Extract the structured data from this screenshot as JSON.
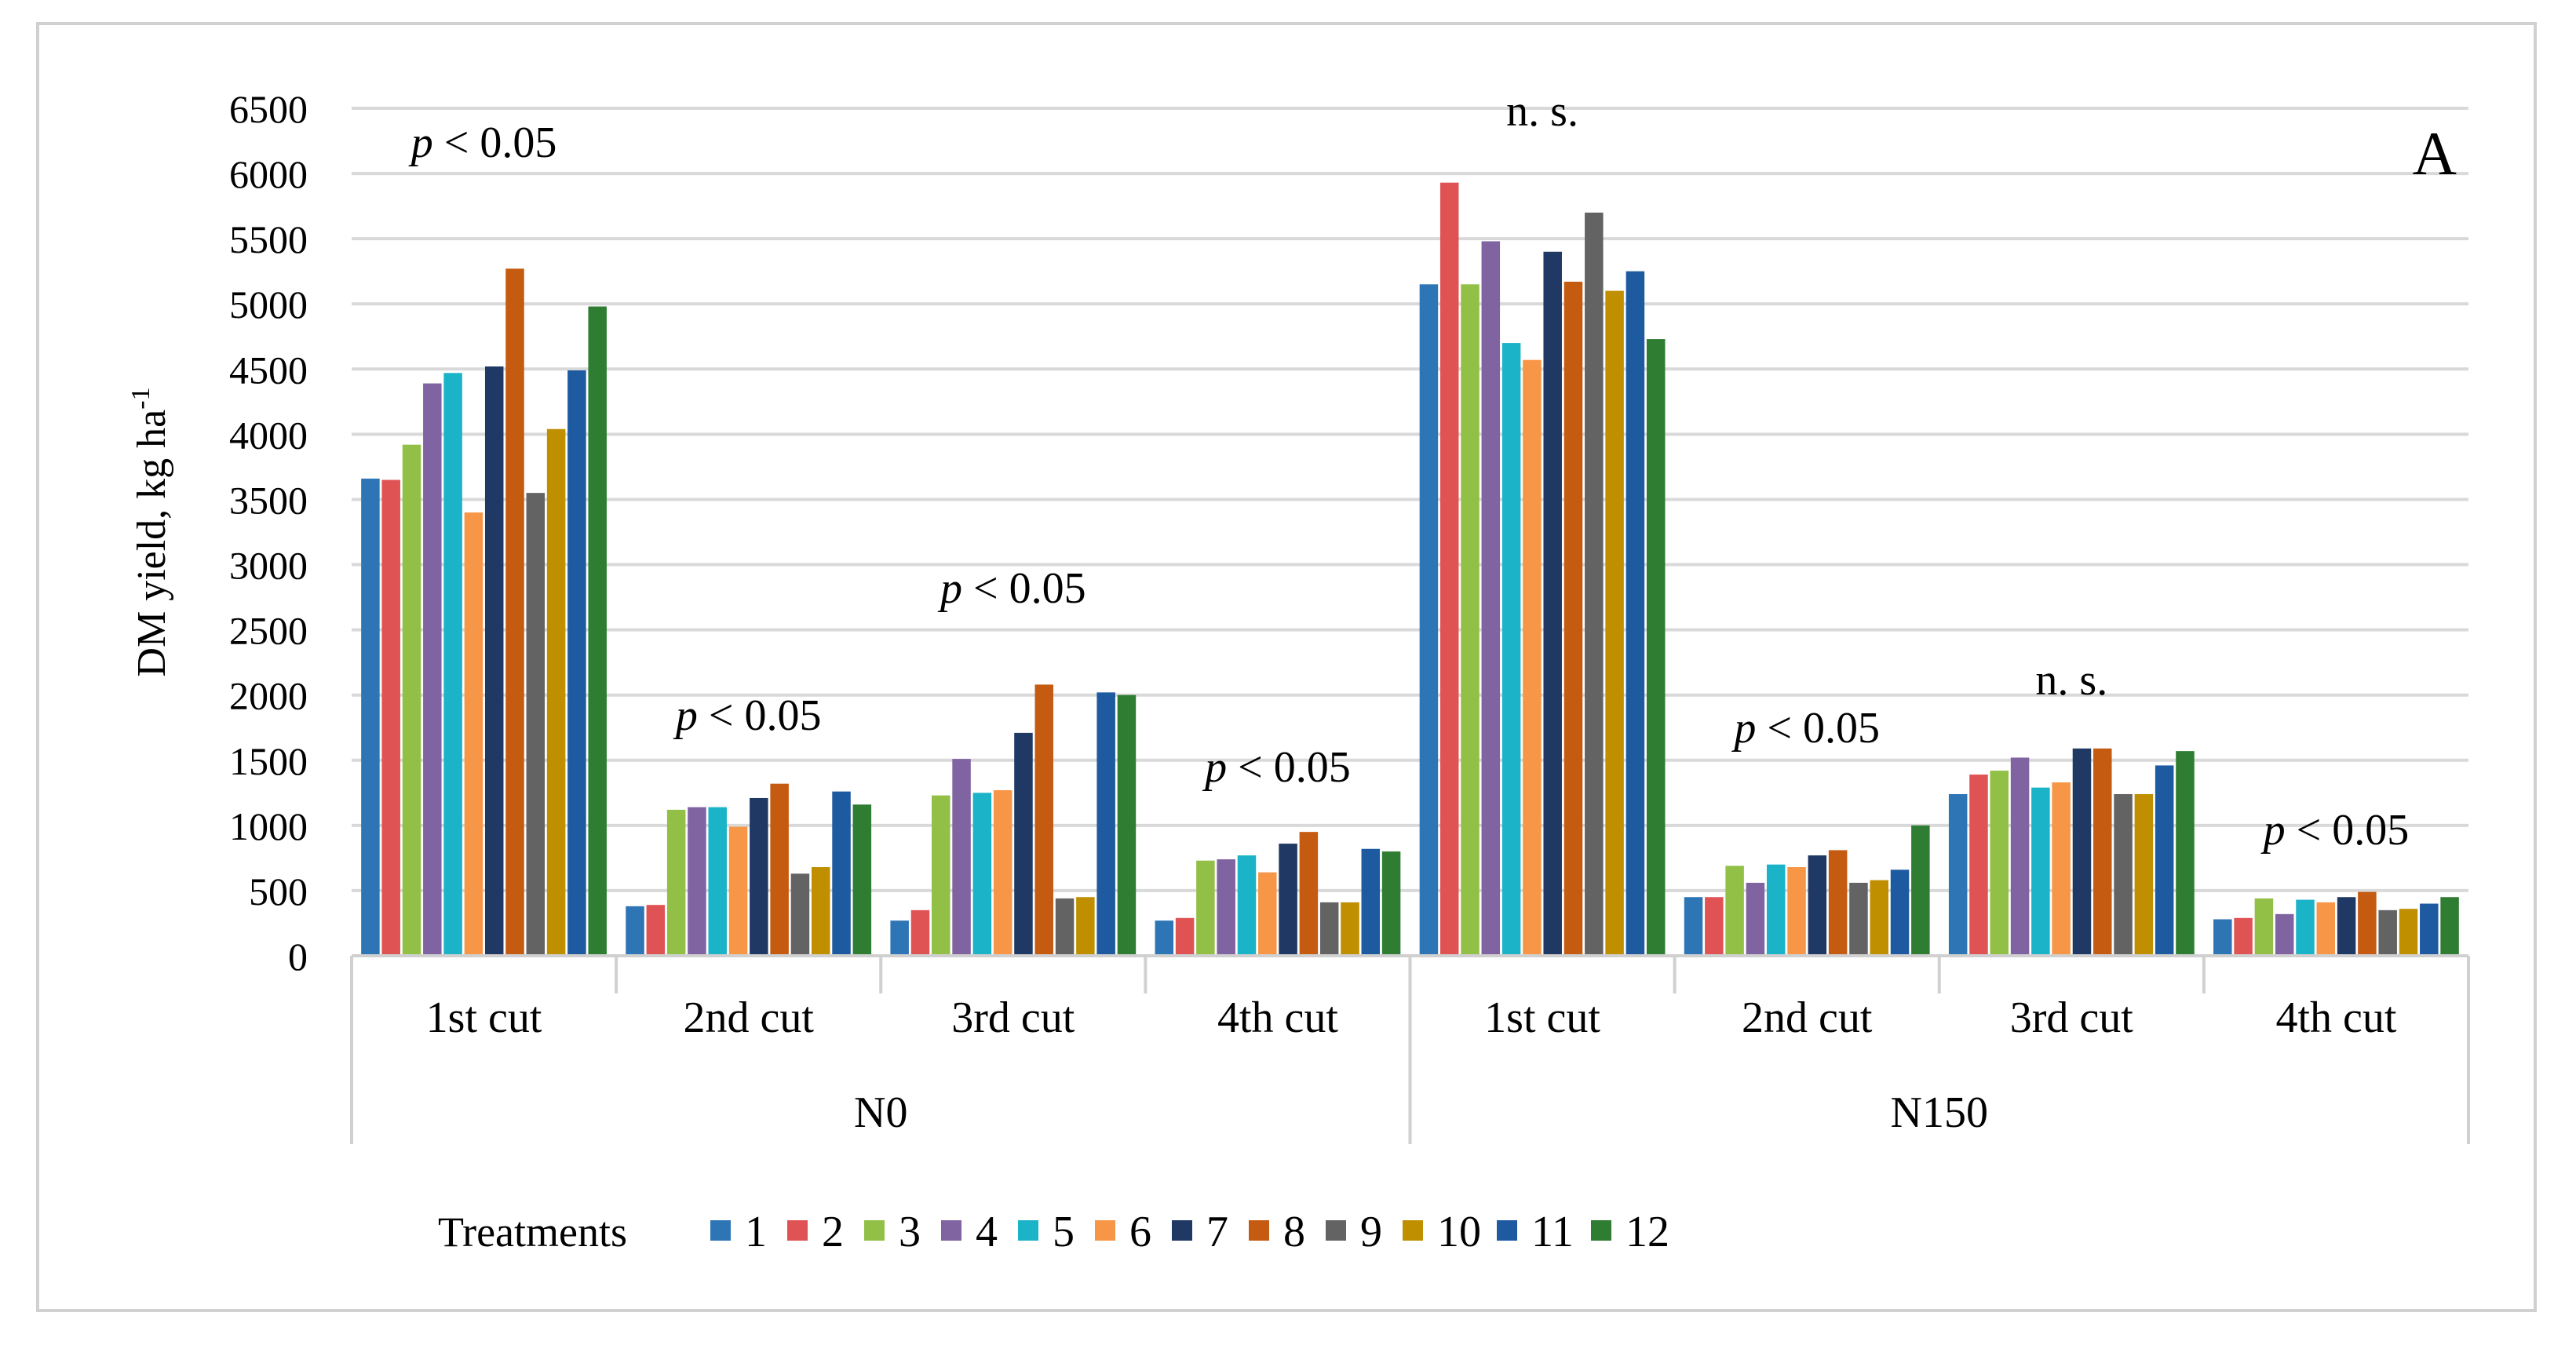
{
  "chart_data": {
    "type": "bar",
    "panel_label": "A",
    "ylabel": "DM yield, kg ha",
    "ylabel_sup": "-1",
    "ylim": [
      0,
      6500
    ],
    "yticks": [
      0,
      500,
      1000,
      1500,
      2000,
      2500,
      3000,
      3500,
      4000,
      4500,
      5000,
      5500,
      6000,
      6500
    ],
    "grid": true,
    "legend_title": "Treatments",
    "legend_position": "bottom",
    "groups": [
      {
        "label": "N0",
        "cuts": [
          "1st cut",
          "2nd cut",
          "3rd cut",
          "4th cut"
        ]
      },
      {
        "label": "N150",
        "cuts": [
          "1st cut",
          "2nd cut",
          "3rd cut",
          "4th cut"
        ]
      }
    ],
    "annotations": [
      {
        "p": "p",
        "rest": " < 0.05"
      },
      {
        "p": "p",
        "rest": " < 0.05"
      },
      {
        "p": "p",
        "rest": " < 0.05"
      },
      {
        "p": "p",
        "rest": " < 0.05"
      },
      {
        "p": "",
        "rest": "n. s."
      },
      {
        "p": "p",
        "rest": " < 0.05"
      },
      {
        "p": "",
        "rest": "n. s."
      },
      {
        "p": "p",
        "rest": " < 0.05"
      }
    ],
    "series": [
      {
        "name": "1",
        "color": "#2e75b6",
        "values": [
          3660,
          380,
          270,
          270,
          5150,
          450,
          1240,
          280
        ]
      },
      {
        "name": "2",
        "color": "#e05355",
        "values": [
          3650,
          390,
          350,
          290,
          5930,
          450,
          1390,
          290
        ]
      },
      {
        "name": "3",
        "color": "#92c047",
        "values": [
          3920,
          1120,
          1230,
          730,
          5150,
          690,
          1420,
          440
        ]
      },
      {
        "name": "4",
        "color": "#8064a2",
        "values": [
          4390,
          1140,
          1510,
          740,
          5480,
          560,
          1520,
          320
        ]
      },
      {
        "name": "5",
        "color": "#1bb3c8",
        "values": [
          4470,
          1140,
          1250,
          770,
          4700,
          700,
          1290,
          430
        ]
      },
      {
        "name": "6",
        "color": "#f79646",
        "values": [
          3400,
          990,
          1270,
          640,
          4570,
          680,
          1330,
          410
        ]
      },
      {
        "name": "7",
        "color": "#1f3864",
        "values": [
          4520,
          1210,
          1710,
          860,
          5400,
          770,
          1590,
          450
        ]
      },
      {
        "name": "8",
        "color": "#c55a11",
        "values": [
          5270,
          1320,
          2080,
          950,
          5170,
          810,
          1590,
          490
        ]
      },
      {
        "name": "9",
        "color": "#636363",
        "values": [
          3550,
          630,
          440,
          410,
          5700,
          560,
          1240,
          350
        ]
      },
      {
        "name": "10",
        "color": "#bf8f00",
        "values": [
          4040,
          680,
          450,
          410,
          5100,
          580,
          1240,
          360
        ]
      },
      {
        "name": "11",
        "color": "#1e5aa0",
        "values": [
          4490,
          1260,
          2020,
          820,
          5250,
          660,
          1460,
          400
        ]
      },
      {
        "name": "12",
        "color": "#2e7d32",
        "values": [
          4980,
          1160,
          2000,
          800,
          4730,
          1000,
          1570,
          450
        ]
      }
    ]
  }
}
